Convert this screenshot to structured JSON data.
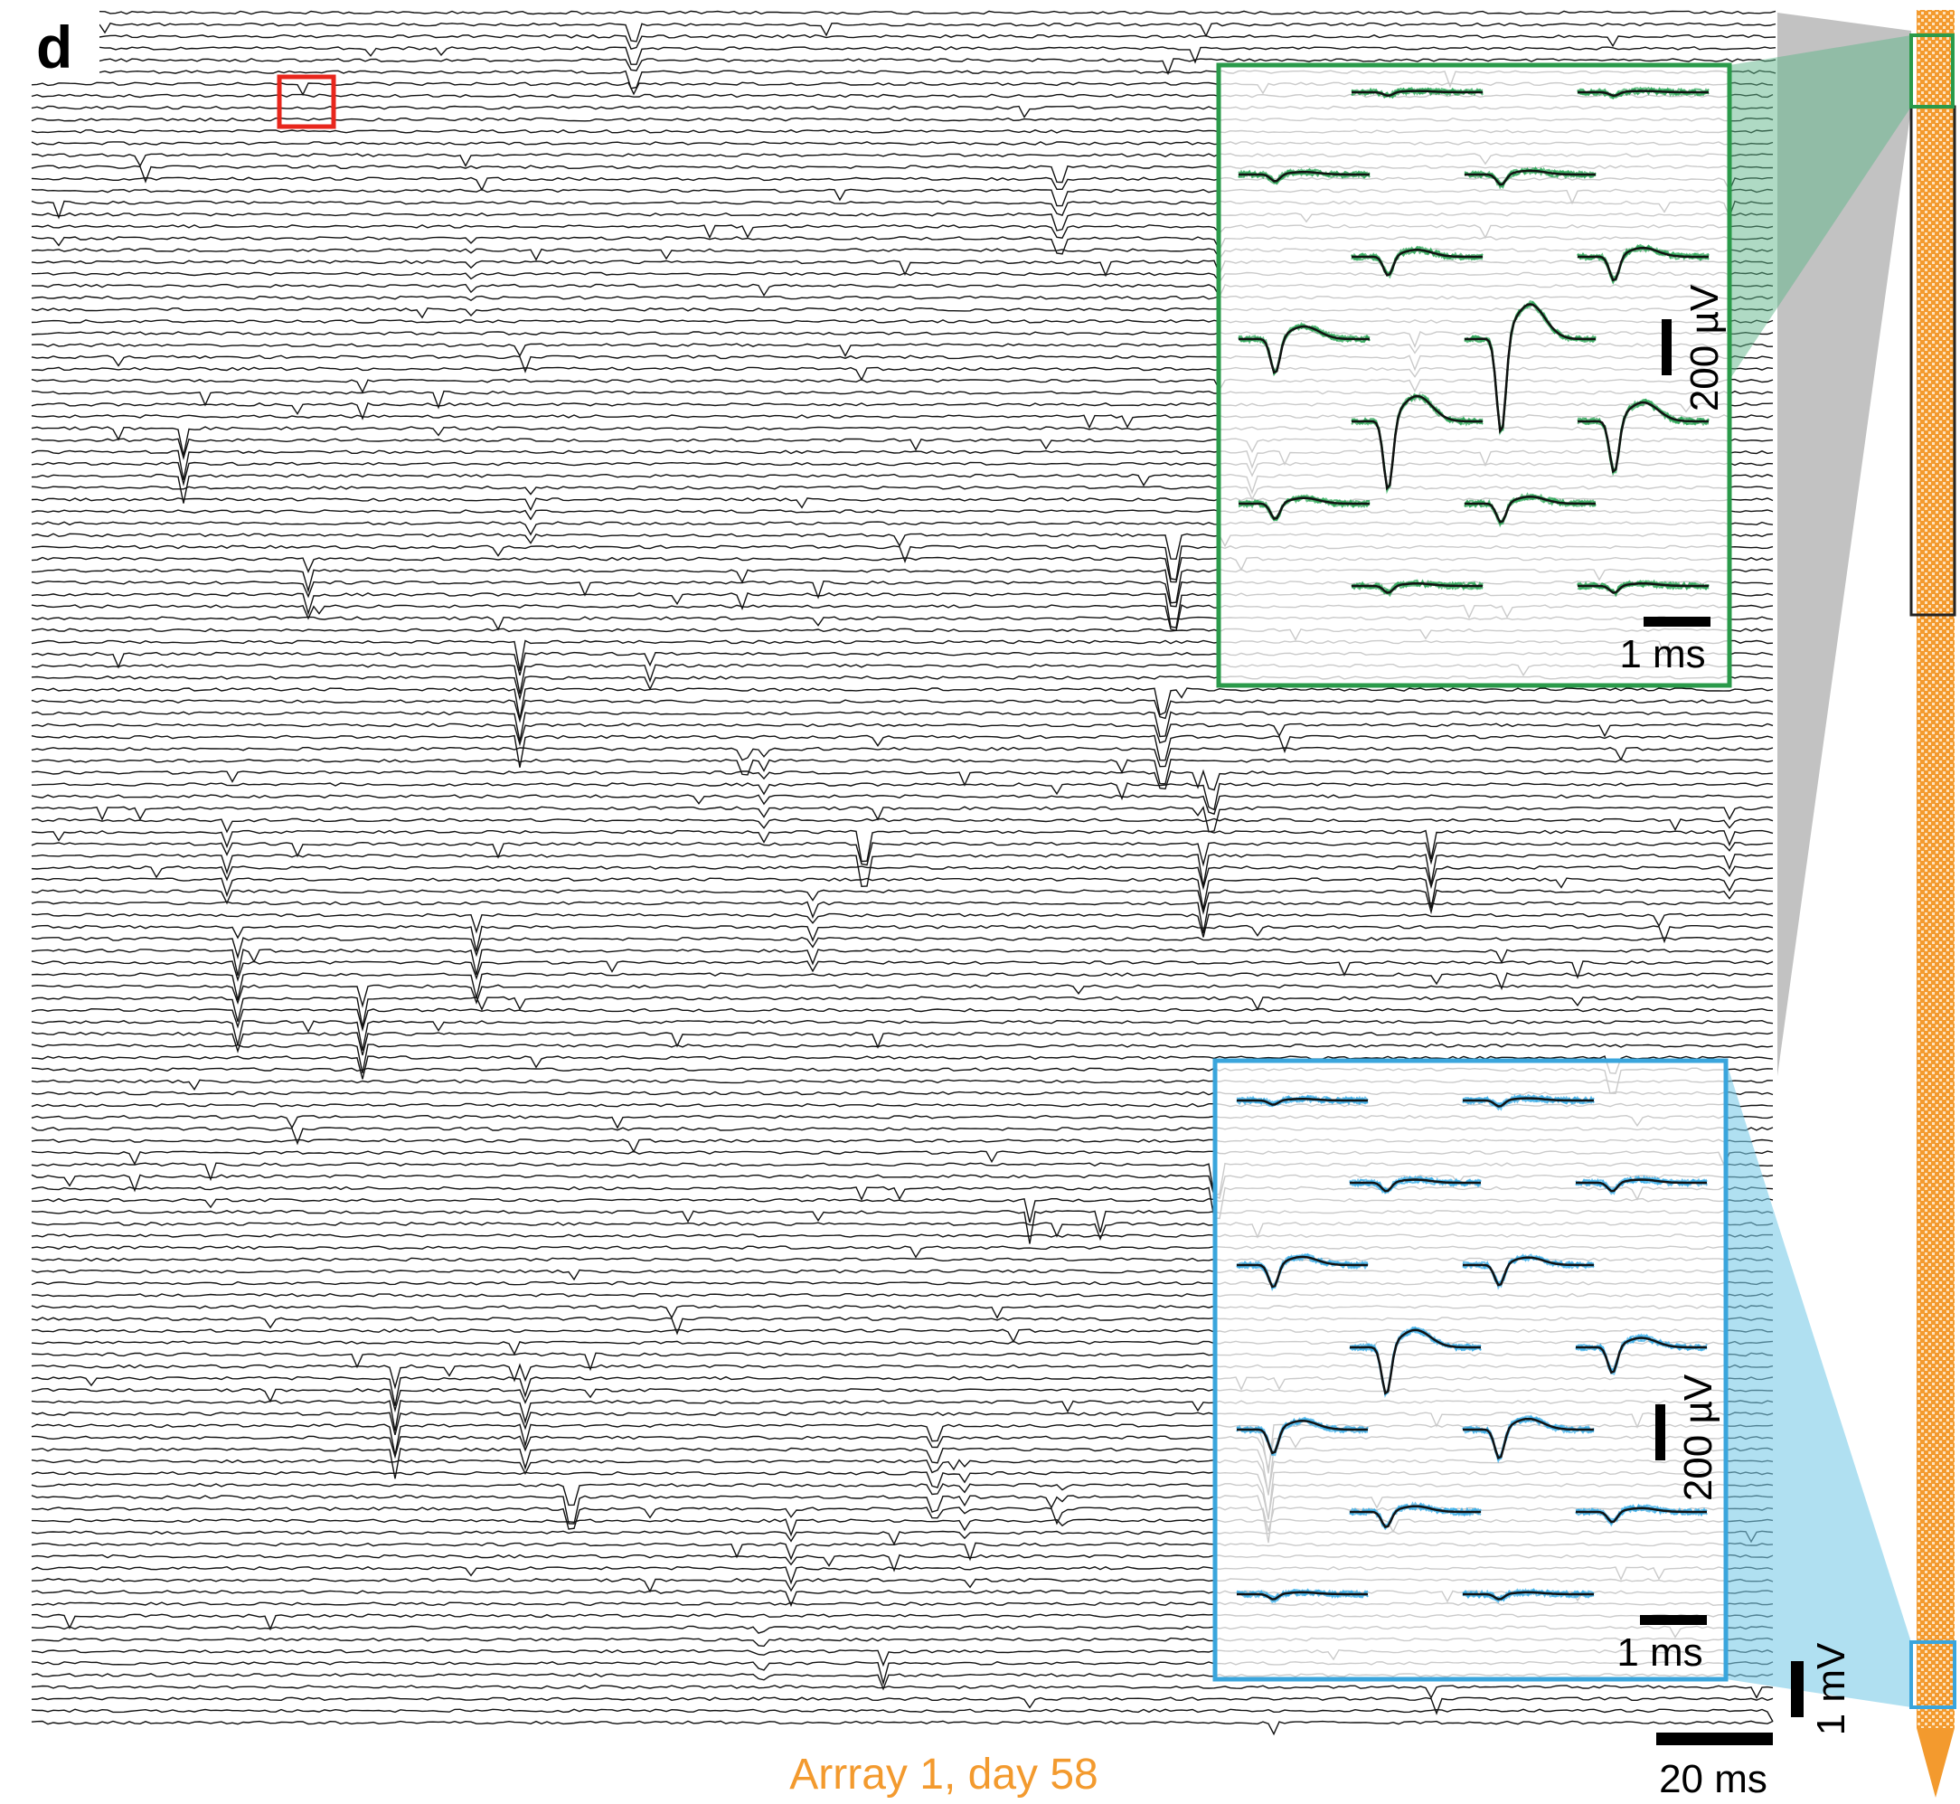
{
  "panel_label": "d",
  "caption": "Arrray 1, day 58",
  "scale_bars": {
    "time": "20 ms",
    "voltage": "1 mV"
  },
  "insets": [
    {
      "color": "green",
      "voltage": "200 µV",
      "time": "1 ms"
    },
    {
      "color": "blue",
      "voltage": "200 µV",
      "time": "1 ms"
    }
  ]
}
